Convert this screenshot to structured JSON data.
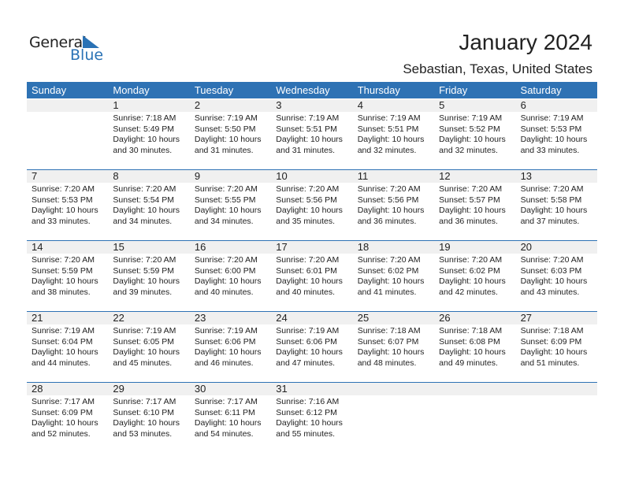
{
  "logo": {
    "general": "General",
    "blue": "Blue"
  },
  "title": "January 2024",
  "subtitle": "Sebastian, Texas, United States",
  "colors": {
    "header": "#2e72b4",
    "band": "#f0f0f0",
    "logo_blue": "#2a72b5"
  },
  "weekdays": [
    "Sunday",
    "Monday",
    "Tuesday",
    "Wednesday",
    "Thursday",
    "Friday",
    "Saturday"
  ],
  "weeks": [
    [
      null,
      {
        "day": "1",
        "sunrise": "Sunrise: 7:18 AM",
        "sunset": "Sunset: 5:49 PM",
        "daylight1": "Daylight: 10 hours",
        "daylight2": "and 30 minutes."
      },
      {
        "day": "2",
        "sunrise": "Sunrise: 7:19 AM",
        "sunset": "Sunset: 5:50 PM",
        "daylight1": "Daylight: 10 hours",
        "daylight2": "and 31 minutes."
      },
      {
        "day": "3",
        "sunrise": "Sunrise: 7:19 AM",
        "sunset": "Sunset: 5:51 PM",
        "daylight1": "Daylight: 10 hours",
        "daylight2": "and 31 minutes."
      },
      {
        "day": "4",
        "sunrise": "Sunrise: 7:19 AM",
        "sunset": "Sunset: 5:51 PM",
        "daylight1": "Daylight: 10 hours",
        "daylight2": "and 32 minutes."
      },
      {
        "day": "5",
        "sunrise": "Sunrise: 7:19 AM",
        "sunset": "Sunset: 5:52 PM",
        "daylight1": "Daylight: 10 hours",
        "daylight2": "and 32 minutes."
      },
      {
        "day": "6",
        "sunrise": "Sunrise: 7:19 AM",
        "sunset": "Sunset: 5:53 PM",
        "daylight1": "Daylight: 10 hours",
        "daylight2": "and 33 minutes."
      }
    ],
    [
      {
        "day": "7",
        "sunrise": "Sunrise: 7:20 AM",
        "sunset": "Sunset: 5:53 PM",
        "daylight1": "Daylight: 10 hours",
        "daylight2": "and 33 minutes."
      },
      {
        "day": "8",
        "sunrise": "Sunrise: 7:20 AM",
        "sunset": "Sunset: 5:54 PM",
        "daylight1": "Daylight: 10 hours",
        "daylight2": "and 34 minutes."
      },
      {
        "day": "9",
        "sunrise": "Sunrise: 7:20 AM",
        "sunset": "Sunset: 5:55 PM",
        "daylight1": "Daylight: 10 hours",
        "daylight2": "and 34 minutes."
      },
      {
        "day": "10",
        "sunrise": "Sunrise: 7:20 AM",
        "sunset": "Sunset: 5:56 PM",
        "daylight1": "Daylight: 10 hours",
        "daylight2": "and 35 minutes."
      },
      {
        "day": "11",
        "sunrise": "Sunrise: 7:20 AM",
        "sunset": "Sunset: 5:56 PM",
        "daylight1": "Daylight: 10 hours",
        "daylight2": "and 36 minutes."
      },
      {
        "day": "12",
        "sunrise": "Sunrise: 7:20 AM",
        "sunset": "Sunset: 5:57 PM",
        "daylight1": "Daylight: 10 hours",
        "daylight2": "and 36 minutes."
      },
      {
        "day": "13",
        "sunrise": "Sunrise: 7:20 AM",
        "sunset": "Sunset: 5:58 PM",
        "daylight1": "Daylight: 10 hours",
        "daylight2": "and 37 minutes."
      }
    ],
    [
      {
        "day": "14",
        "sunrise": "Sunrise: 7:20 AM",
        "sunset": "Sunset: 5:59 PM",
        "daylight1": "Daylight: 10 hours",
        "daylight2": "and 38 minutes."
      },
      {
        "day": "15",
        "sunrise": "Sunrise: 7:20 AM",
        "sunset": "Sunset: 5:59 PM",
        "daylight1": "Daylight: 10 hours",
        "daylight2": "and 39 minutes."
      },
      {
        "day": "16",
        "sunrise": "Sunrise: 7:20 AM",
        "sunset": "Sunset: 6:00 PM",
        "daylight1": "Daylight: 10 hours",
        "daylight2": "and 40 minutes."
      },
      {
        "day": "17",
        "sunrise": "Sunrise: 7:20 AM",
        "sunset": "Sunset: 6:01 PM",
        "daylight1": "Daylight: 10 hours",
        "daylight2": "and 40 minutes."
      },
      {
        "day": "18",
        "sunrise": "Sunrise: 7:20 AM",
        "sunset": "Sunset: 6:02 PM",
        "daylight1": "Daylight: 10 hours",
        "daylight2": "and 41 minutes."
      },
      {
        "day": "19",
        "sunrise": "Sunrise: 7:20 AM",
        "sunset": "Sunset: 6:02 PM",
        "daylight1": "Daylight: 10 hours",
        "daylight2": "and 42 minutes."
      },
      {
        "day": "20",
        "sunrise": "Sunrise: 7:20 AM",
        "sunset": "Sunset: 6:03 PM",
        "daylight1": "Daylight: 10 hours",
        "daylight2": "and 43 minutes."
      }
    ],
    [
      {
        "day": "21",
        "sunrise": "Sunrise: 7:19 AM",
        "sunset": "Sunset: 6:04 PM",
        "daylight1": "Daylight: 10 hours",
        "daylight2": "and 44 minutes."
      },
      {
        "day": "22",
        "sunrise": "Sunrise: 7:19 AM",
        "sunset": "Sunset: 6:05 PM",
        "daylight1": "Daylight: 10 hours",
        "daylight2": "and 45 minutes."
      },
      {
        "day": "23",
        "sunrise": "Sunrise: 7:19 AM",
        "sunset": "Sunset: 6:06 PM",
        "daylight1": "Daylight: 10 hours",
        "daylight2": "and 46 minutes."
      },
      {
        "day": "24",
        "sunrise": "Sunrise: 7:19 AM",
        "sunset": "Sunset: 6:06 PM",
        "daylight1": "Daylight: 10 hours",
        "daylight2": "and 47 minutes."
      },
      {
        "day": "25",
        "sunrise": "Sunrise: 7:18 AM",
        "sunset": "Sunset: 6:07 PM",
        "daylight1": "Daylight: 10 hours",
        "daylight2": "and 48 minutes."
      },
      {
        "day": "26",
        "sunrise": "Sunrise: 7:18 AM",
        "sunset": "Sunset: 6:08 PM",
        "daylight1": "Daylight: 10 hours",
        "daylight2": "and 49 minutes."
      },
      {
        "day": "27",
        "sunrise": "Sunrise: 7:18 AM",
        "sunset": "Sunset: 6:09 PM",
        "daylight1": "Daylight: 10 hours",
        "daylight2": "and 51 minutes."
      }
    ],
    [
      {
        "day": "28",
        "sunrise": "Sunrise: 7:17 AM",
        "sunset": "Sunset: 6:09 PM",
        "daylight1": "Daylight: 10 hours",
        "daylight2": "and 52 minutes."
      },
      {
        "day": "29",
        "sunrise": "Sunrise: 7:17 AM",
        "sunset": "Sunset: 6:10 PM",
        "daylight1": "Daylight: 10 hours",
        "daylight2": "and 53 minutes."
      },
      {
        "day": "30",
        "sunrise": "Sunrise: 7:17 AM",
        "sunset": "Sunset: 6:11 PM",
        "daylight1": "Daylight: 10 hours",
        "daylight2": "and 54 minutes."
      },
      {
        "day": "31",
        "sunrise": "Sunrise: 7:16 AM",
        "sunset": "Sunset: 6:12 PM",
        "daylight1": "Daylight: 10 hours",
        "daylight2": "and 55 minutes."
      },
      null,
      null,
      null
    ]
  ]
}
